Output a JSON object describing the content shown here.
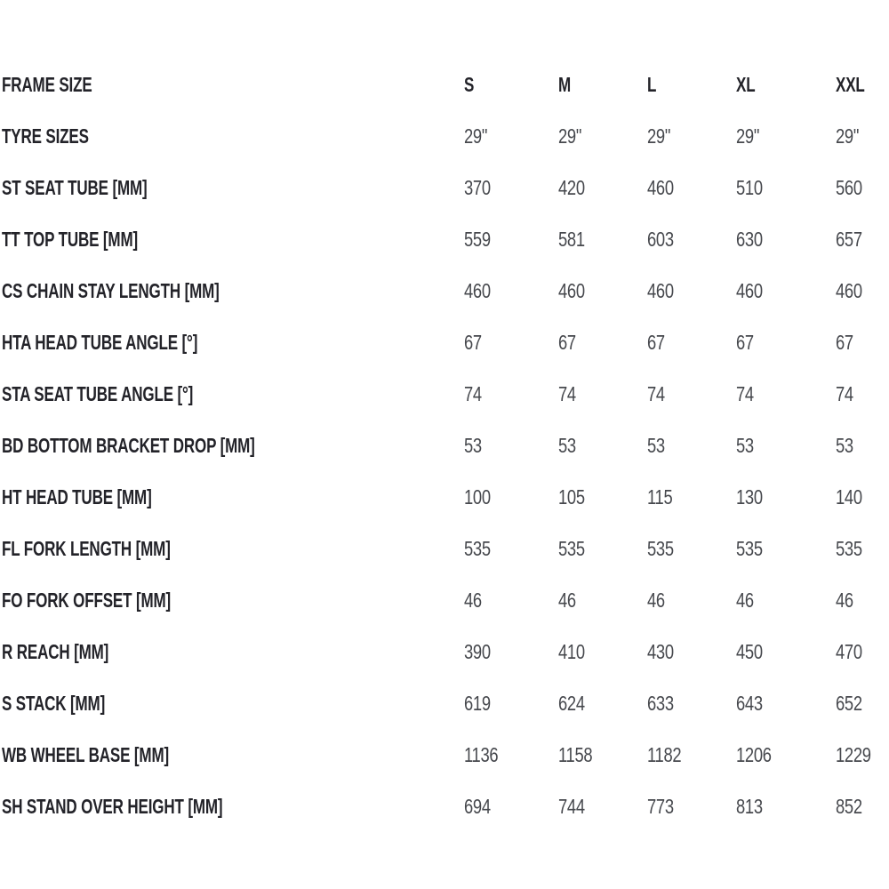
{
  "table": {
    "header": {
      "label": "FRAME SIZE",
      "columns": [
        "S",
        "M",
        "L",
        "XL",
        "XXL"
      ]
    },
    "rows": [
      {
        "label": "TYRE SIZES",
        "values": [
          "29\"",
          "29\"",
          "29\"",
          "29\"",
          "29\""
        ]
      },
      {
        "label": "ST SEAT TUBE [MM]",
        "values": [
          "370",
          "420",
          "460",
          "510",
          "560"
        ]
      },
      {
        "label": "TT TOP TUBE [MM]",
        "values": [
          "559",
          "581",
          "603",
          "630",
          "657"
        ]
      },
      {
        "label": "CS CHAIN STAY LENGTH [MM]",
        "values": [
          "460",
          "460",
          "460",
          "460",
          "460"
        ]
      },
      {
        "label": "HTA HEAD TUBE ANGLE [°]",
        "values": [
          "67",
          "67",
          "67",
          "67",
          "67"
        ]
      },
      {
        "label": "STA SEAT TUBE ANGLE [°]",
        "values": [
          "74",
          "74",
          "74",
          "74",
          "74"
        ]
      },
      {
        "label": "BD BOTTOM BRACKET DROP [MM]",
        "values": [
          "53",
          "53",
          "53",
          "53",
          "53"
        ]
      },
      {
        "label": "HT HEAD TUBE [MM]",
        "values": [
          "100",
          "105",
          "115",
          "130",
          "140"
        ]
      },
      {
        "label": "FL FORK LENGTH [MM]",
        "values": [
          "535",
          "535",
          "535",
          "535",
          "535"
        ]
      },
      {
        "label": "FO FORK OFFSET [MM]",
        "values": [
          "46",
          "46",
          "46",
          "46",
          "46"
        ]
      },
      {
        "label": "R REACH [MM]",
        "values": [
          "390",
          "410",
          "430",
          "450",
          "470"
        ]
      },
      {
        "label": "S STACK [MM]",
        "values": [
          "619",
          "624",
          "633",
          "643",
          "652"
        ]
      },
      {
        "label": "WB WHEEL BASE [MM]",
        "values": [
          "1136",
          "1158",
          "1182",
          "1206",
          "1229"
        ]
      },
      {
        "label": "SH STAND OVER HEIGHT [MM]",
        "values": [
          "694",
          "744",
          "773",
          "813",
          "852"
        ]
      }
    ]
  },
  "colors": {
    "background": "#ffffff",
    "label_text": "#232329",
    "value_text": "#46484d"
  }
}
